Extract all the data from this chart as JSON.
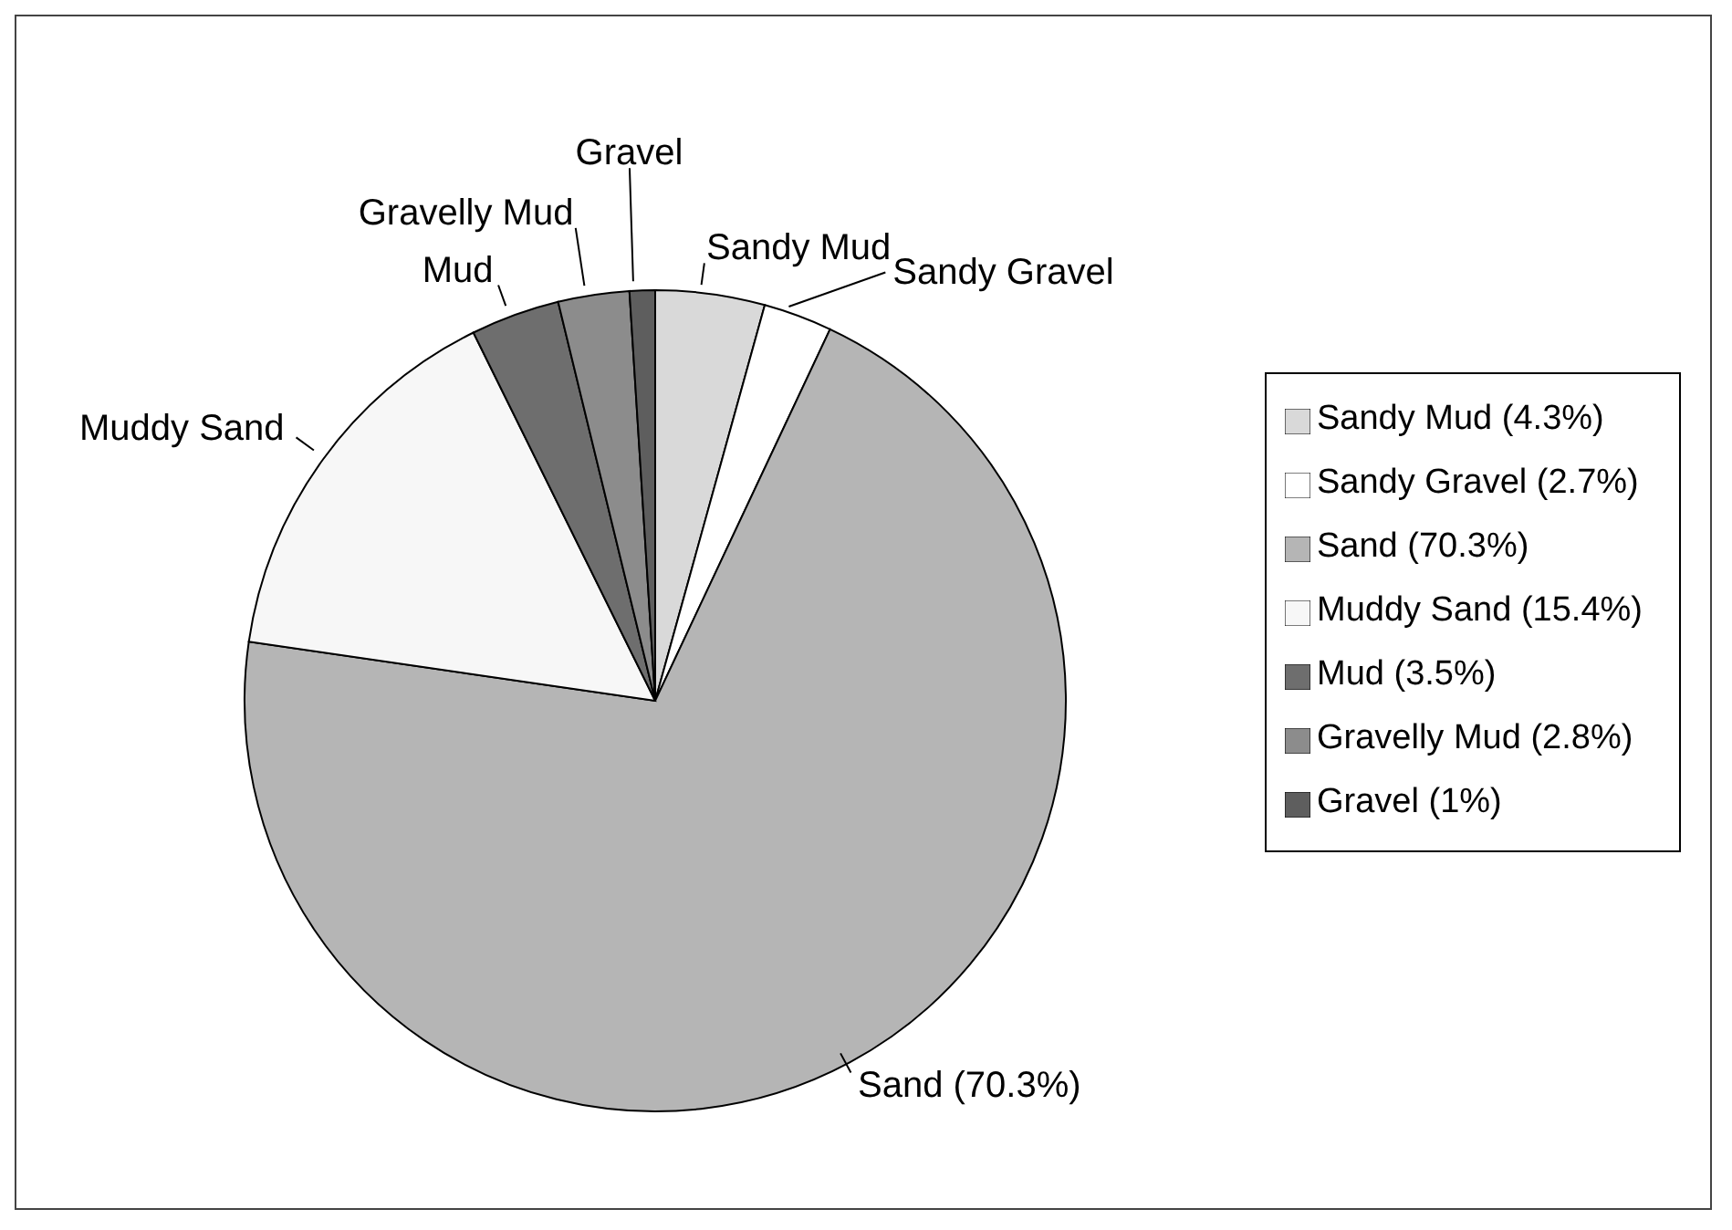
{
  "chart_data": {
    "type": "pie",
    "categories": [
      "Sandy Mud",
      "Sandy Gravel",
      "Sand",
      "Muddy Sand",
      "Mud",
      "Gravelly Mud",
      "Gravel"
    ],
    "values": [
      4.3,
      2.7,
      70.3,
      15.4,
      3.5,
      2.8,
      1
    ],
    "colors": [
      "#d9d9d9",
      "#ffffff",
      "#b5b5b5",
      "#f7f7f7",
      "#6e6e6e",
      "#8c8c8c",
      "#5e5e5e"
    ],
    "value_labels": [
      "(4.3%)",
      "(2.7%)",
      "(70.3%)",
      "(15.4%)",
      "(3.5%)",
      "(2.8%)",
      "(1%)"
    ],
    "legend": "right"
  }
}
